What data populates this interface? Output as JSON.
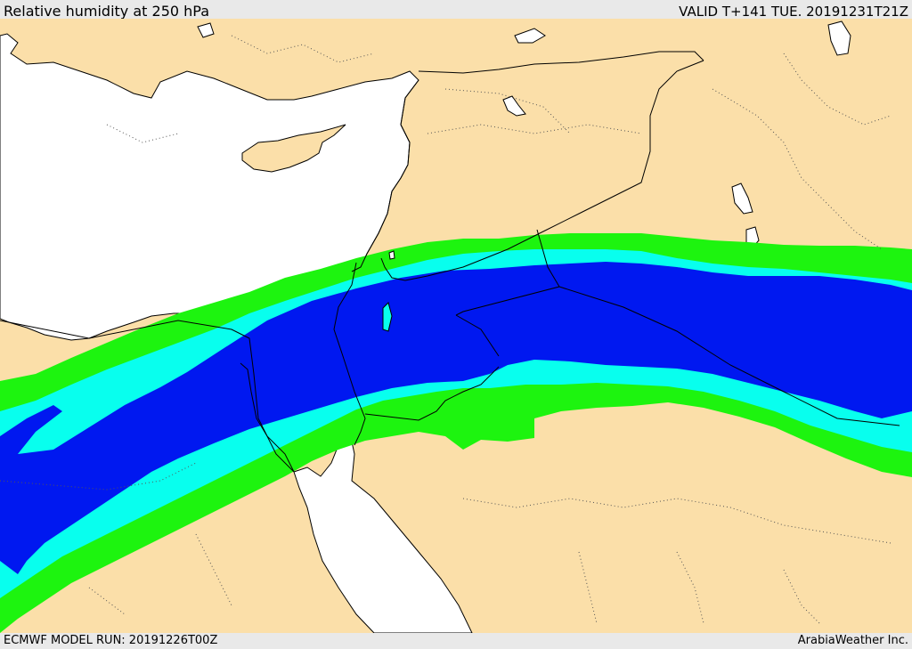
{
  "header": {
    "title": "Relative humidity at 250 hPa",
    "valid": "VALID T+141 TUE. 20191231T21Z"
  },
  "footer": {
    "model_run": "ECMWF MODEL RUN: 20191226T00Z",
    "credit": "ArabiaWeather Inc."
  },
  "colors": {
    "land": "#fbdfa9",
    "sea": "#ffffff",
    "humidity_band_1": "#1df40f",
    "humidity_band_2": "#08ffee",
    "humidity_band_3": "#0018f0",
    "coastline": "#000000",
    "borders": "#000000"
  }
}
